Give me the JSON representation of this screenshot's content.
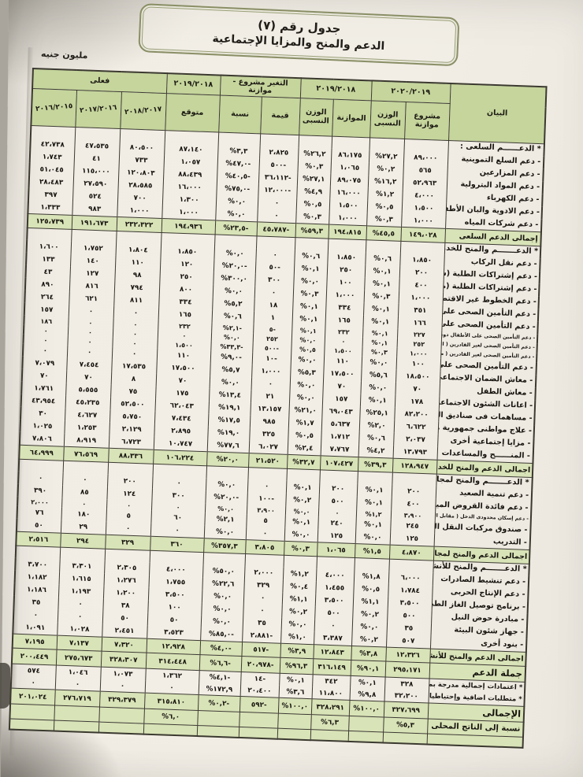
{
  "page": {
    "title_line1": "جدول رقم (٧)",
    "title_line2": "الدعم والمنح والمزايا الإجتماعية",
    "unit_label": "مليون جنيه"
  },
  "table": {
    "groups": {
      "fy_draft": "٢٠٢٠/٢٠١٩",
      "fy_budget": "٢٠١٩/٢٠١٨",
      "change": "التغير مشروع - موازنة",
      "fy_expected": "٢٠١٩/٢٠١٨",
      "actual": "فعلى"
    },
    "headers": {
      "item": "البيان",
      "draft_budget": "مشروع موازنة",
      "relative_weight": "الوزن النسبى",
      "budget": "الموازنة",
      "relative_weight2": "الوزن النسبى",
      "change_value": "قيمة",
      "change_pct": "نسبة",
      "expected": "متوقع",
      "fy1718": "٢٠١٨/٢٠١٧",
      "fy1617": "٢٠١٧/٢٠١٦",
      "fy1516": "٢٠١٦/٢٠١٥"
    },
    "rows": [
      {
        "type": "section",
        "label": "* الدعــــــم السلعى :",
        "cells": [
          "",
          "",
          "",
          "",
          "",
          "",
          "",
          "",
          "",
          ""
        ]
      },
      {
        "type": "item",
        "label": "- دعم السلع التموينية",
        "cells": [
          "٨٩،٠٠٠",
          "%٢٧,٢",
          "٨٦،١٧٥",
          "%٢٦,٢",
          "٢،٨٢٥",
          "%٣,٣",
          "٨٧،١٤٠",
          "٨٠،٥٠٠",
          "٤٧،٥٣٥",
          "٤٢،٧٣٨"
        ]
      },
      {
        "type": "item",
        "label": "- دعم المزارعين",
        "cells": [
          "٥٦٥",
          "%٠,٢",
          "١،٠٦٥",
          "%٠,٣",
          "٥٠٠-",
          "%٤٧,٠-",
          "١،٠٥٧",
          "٧٣٣",
          "٤١",
          "١،٧٤٣"
        ]
      },
      {
        "type": "item",
        "label": "- دعم المواد البترولية",
        "cells": [
          "٥٢،٩٦٣",
          "%١٦,٢",
          "٨٩،٠٧٥",
          "%٢٧,١",
          "٣٦،١١٢-",
          "%٤٠,٥-",
          "٨٨،٤٣٩",
          "١٢٠،٨٠٣",
          "١١٥،٠٠٠",
          "٥١،٠٤٥"
        ]
      },
      {
        "type": "item",
        "label": "- دعم الكهرباء",
        "cells": [
          "٤،٠٠٠",
          "%١,٢",
          "١٦،٠٠٠",
          "%٤,٩",
          "١٢،٠٠٠-",
          "%٧٥,٠-",
          "١٦،٠٠٠",
          "٢٨،٥٨٥",
          "٢٧،٥٩٠",
          "٢٨،٤٨٣"
        ]
      },
      {
        "type": "item",
        "label": "- دعم الادوية والبان الأطفال",
        "cells": [
          "١،٥٠٠",
          "%٠,٥",
          "١،٥٠٠",
          "%٠,٥",
          "٠",
          "%٠,٠",
          "١،٣٠٠",
          "٧٠٠",
          "٥٢٤",
          "٣٩٧"
        ]
      },
      {
        "type": "item",
        "label": "- دعم شركات المياه",
        "cells": [
          "١،٠٠٠",
          "%٠,٣",
          "١،٠٠٠",
          "%٠,٣",
          "٠",
          "%٠,٠",
          "١،٠٠٠",
          "١،٠٠٠",
          "٩٨٣",
          "١،٣٣٣"
        ]
      },
      {
        "type": "total",
        "label": "إجمالى الدعم السلعى",
        "cells": [
          "١٤٩،٠٢٨",
          "%٤٥,٥",
          "١٩٤،٨١٥",
          "%٥٩,٣",
          "٤٥،٧٨٧-",
          "%٢٣,٥-",
          "١٩٤،٩٣٦",
          "٢٣٢،٣٢٢",
          "١٩١،٦٧٣",
          "١٢٥،٧٣٩"
        ]
      },
      {
        "type": "section",
        "label": "* الدعـــــــم والمنح للخدمات الإجتماعية :",
        "cells": [
          "",
          "",
          "",
          "",
          "",
          "",
          "",
          "",
          "",
          ""
        ]
      },
      {
        "type": "item",
        "label": "- دعم نقل الركاب",
        "cells": [
          "١،٨٥٠",
          "%٠,٦",
          "١،٨٥٠",
          "%٠,٦",
          "٠",
          "%٠,٠",
          "١،٨٥٠",
          "١،٨٠٤",
          "١،٧٥٢",
          "١،٦٠٠"
        ]
      },
      {
        "type": "item",
        "label": "- دعم إشتراكات الطلبة (سكك حديد)",
        "cells": [
          "٢٠٠",
          "%٠,١",
          "٢٥٠",
          "%٠,١",
          "٥٠-",
          "%٢٠,٠-",
          "١٢٠",
          "١١٠",
          "١٤٠",
          "١٣٣"
        ]
      },
      {
        "type": "item",
        "label": "- دعم إشتراكات الطلبة (مترو الأنفاق)",
        "cells": [
          "٤٠٠",
          "%٠,١",
          "١٠٠",
          "%٠,٠",
          "٣٠٠",
          "%٣٠٠,٠",
          "٢٥٠",
          "٩٨",
          "١٢٧",
          "٤٣"
        ]
      },
      {
        "type": "item",
        "label": "- دعم الخطوط غير الاقتصادية (سكك حديد)",
        "cells": [
          "١،٠٠٠",
          "%٠,٣",
          "١،٠٠٠",
          "%٠,٣",
          "٠",
          "%٠,٠",
          "٨٠٠",
          "٧٩٤",
          "٨١٦",
          "٨٩٠"
        ]
      },
      {
        "type": "item",
        "label": "- دعم التأمين الصحى على الطلاب",
        "cells": [
          "٣٥١",
          "%٠,١",
          "٣٣٤",
          "%٠,١",
          "١٨",
          "%٥,٢",
          "٣٣٤",
          "٨١١",
          "٦٢١",
          "٢٦٤"
        ]
      },
      {
        "type": "item",
        "label": "- دعم التأمين الصحى على المرأة المعيلة",
        "cells": [
          "١٦٦",
          "%٠,١",
          "١٦٥",
          "%٠,١",
          "١",
          "%٠,٦",
          "١٦٥",
          "٠",
          "٠",
          "١٥٧"
        ]
      },
      {
        "type": "small",
        "label": "- دعم التأمين الصحى على الأطفال دون السن المدرسى",
        "cells": [
          "٢٢٧",
          "%٠,١",
          "٢٣٢",
          "%٠,١",
          "٥-",
          "%٢,١-",
          "٢٣٢",
          "٠",
          "٠",
          "١٨٦"
        ]
      },
      {
        "type": "small",
        "label": "- دعم التأمين الصحى لغير القادرين ( التأمين الصحى الشامل )",
        "cells": [
          "٢٥٢",
          "%٠,١",
          "٠",
          "%٠,٠",
          "٢٥٢",
          "%٠,٠",
          "٠",
          "٠",
          "٠",
          "٠"
        ]
      },
      {
        "type": "small",
        "label": "- دعم التأمين الصحى لغير القادرين ( من نصيب معاش الضمان الإجتماعى )",
        "cells": [
          "١،٠٠٠",
          "%٠,٣",
          "١،٥٠٠",
          "%٠,٥",
          "٥٠٠-",
          "%٣٣,٣-",
          "١،٥٠٠",
          "٠",
          "٠",
          "٠"
        ]
      },
      {
        "type": "item",
        "label": "- دعم التأمين الصحى على الفلاحين",
        "cells": [
          "١٠٠",
          "%٠,٠",
          "١١٠",
          "%٠,٠",
          "١٠-",
          "%٩,٠-",
          "١١٠",
          "٠",
          "٠",
          "٠"
        ]
      },
      {
        "type": "item",
        "label": "- معاش الضمان الاجتماعى",
        "cells": [
          "١٨،٥٠٠",
          "%٥,٦",
          "١٧،٥٠٠",
          "%٥,٣",
          "١،٠٠٠",
          "%٥,٧",
          "١٧،٥٠٠",
          "١٧،٥٣٥",
          "٧،٤٥٤",
          "٧،٠٧٩"
        ]
      },
      {
        "type": "item",
        "label": "- معاش الطفل",
        "cells": [
          "٧٠",
          "%٠,٠",
          "٧٠",
          "%٠,٠",
          "٠",
          "%٠,٠",
          "٧٠",
          "٨",
          "٧٠",
          "٧٠"
        ]
      },
      {
        "type": "item",
        "label": "- اعانات الشئون الاجتماعية",
        "cells": [
          "١٧٨",
          "%٠,١",
          "١٥٧",
          "%٠,٠",
          "٢١",
          "%١٣,٤",
          "١٧٥",
          "٧٥",
          "٥،٥٥٥",
          "١،٧٦١"
        ]
      },
      {
        "type": "item",
        "label": "- مساهمات فى صناديق المعاشات",
        "cells": [
          "٨٢،٢٠٠",
          "%٢٥,١",
          "٦٩،٠٤٣",
          "%٢١,٠",
          "١٣،١٥٧",
          "%١٩,١",
          "٦٢،٠٤٣",
          "٥٢،٥٠٠",
          "٤٥،٢٣٥",
          "٤٣،٩٥٤"
        ]
      },
      {
        "type": "item",
        "label": "- علاج مواطنى جمهورية مصر العربية",
        "cells": [
          "٦،٦٢٢",
          "%٢,٠",
          "٥،٦٣٧",
          "%١,٧",
          "٩٨٥",
          "%١٧,٥",
          "٧،٤٣٤",
          "٥،٧٥٠",
          "٤،٦٢٧",
          "٣٠"
        ]
      },
      {
        "type": "item",
        "label": "- مزايا إجتماعية أخرى",
        "cells": [
          "٢،٠٣٧",
          "%٠,٦",
          "١،٧١٢",
          "%٠,٥",
          "٣٢٥",
          "%١٩,٠",
          "٢،٨٩٥",
          "٢،١٢٩",
          "١،٢٥٣",
          "١،٠٢٥"
        ]
      },
      {
        "type": "item",
        "label": "- المنــــــح والمساعدات",
        "cells": [
          "١٣،٧٩٣",
          "%٤,٢",
          "٧،٧٦٧",
          "%٢,٤",
          "٦،٠٢٧",
          "%٧٧,٦",
          "١٠،٧٤٧",
          "٦،٧٢٣",
          "٨،٩١٩",
          "٧،٨٠٦"
        ]
      },
      {
        "type": "total",
        "label": "اجمالى الدعم والمنح للخدمات الاجتماعية",
        "cells": [
          "١٢٨،٩٤٧",
          "%٣٩,٣",
          "١٠٧،٤٢٧",
          "%٣٢,٧",
          "٢١،٥٢٠",
          "%٢٠,٠",
          "١٠٦،٢٢٤",
          "٨٨،٣٣٦",
          "٧٦،٥٦٩",
          "٦٤،٩٩٩"
        ]
      },
      {
        "type": "section",
        "label": "* الدعـــــــم والمنح لمجالات التنمية :",
        "cells": [
          "",
          "",
          "",
          "",
          "",
          "",
          "",
          "",
          "",
          ""
        ]
      },
      {
        "type": "item",
        "label": "- دعم تنمية الصعيد",
        "cells": [
          "٢٠٠",
          "%٠,١",
          "٢٠٠",
          "%٠,١",
          "٠",
          "%٠,٠",
          "٠",
          "٢٠٠",
          "٠",
          "٠"
        ]
      },
      {
        "type": "item",
        "label": "- دعم فائدة القروض الميسرة",
        "cells": [
          "٤٠٠",
          "%٠,١",
          "٥٠٠",
          "%٠,٢",
          "١٠٠-",
          "%٢٠,٠-",
          "٣٠٠",
          "١٢٤",
          "٨٥",
          "٣٩٠"
        ]
      },
      {
        "type": "small",
        "label": "- دعم إسكان محدودى الدخل ( مقابل المحصل وفقا لقانون الإسكان الإجتماعى )",
        "cells": [
          "٣،٩٠٠",
          "%١,٢",
          "٠",
          "%٠,٠",
          "٣،٩٠٠",
          "%٠,٠",
          "٠",
          "٠",
          "٠",
          "٢،٠٠٠"
        ]
      },
      {
        "type": "item",
        "label": "- صندوق مركبات النقل السريع",
        "cells": [
          "٢٤٥",
          "%٠,١",
          "٢٤٠",
          "%٠,١",
          "٥",
          "%٢,١",
          "٦٠",
          "٥",
          "١٨٠",
          "٧٦"
        ]
      },
      {
        "type": "item",
        "label": "- التدريب",
        "cells": [
          "١٢٥",
          "%٠,٠",
          "١٢٥",
          "%٠,٠",
          "٠",
          "%٠,٠",
          "٠",
          "٠",
          "٢٩",
          "٥٠"
        ]
      },
      {
        "type": "total",
        "label": "اجمالى الدعم والمنح لمجالات التنمية",
        "cells": [
          "٤،٨٧٠",
          "%١,٥",
          "١،٠٦٥",
          "%٠,٣",
          "٣،٨٠٥",
          "%٣٥٧,٣",
          "٣٦٠",
          "٣٢٩",
          "٢٩٤",
          "٢،٥١٦"
        ]
      },
      {
        "type": "section",
        "label": "* الدعـــــــم والمنح للأنشطة الإقتصادية :",
        "cells": [
          "",
          "",
          "",
          "",
          "",
          "",
          "",
          "",
          "",
          ""
        ]
      },
      {
        "type": "item",
        "label": "- دعم تنشيط الصادرات",
        "cells": [
          "٦،٠٠٠",
          "%١,٨",
          "٤،٠٠٠",
          "%١,٢",
          "٢،٠٠٠",
          "%٥٠,٠",
          "٤،٠٠٠",
          "٢،٣٠٥",
          "٣،٣٠١",
          "٣،٧٠٠"
        ]
      },
      {
        "type": "item",
        "label": "- دعم الإنتاج الحربى",
        "cells": [
          "١،٧٨٤",
          "%٠,٥",
          "١،٤٥٥",
          "%٠,٤",
          "٣٢٩",
          "%٢٢,٦",
          "١،٧٥٥",
          "١،٢٧٦",
          "١،٦١٥",
          "١،١٨٢"
        ]
      },
      {
        "type": "item",
        "label": "- برنامج توصيل الغاز الطبيعى للمنازل",
        "cells": [
          "٣،٥٠٠",
          "%١,١",
          "٣،٥٠٠",
          "%١,١",
          "٠",
          "%٠,٠",
          "٣،٥٠٠",
          "١،٢٠٠",
          "١،١٩٣",
          "١،١٨٦"
        ]
      },
      {
        "type": "item",
        "label": "- مبادرة حوض النيل",
        "cells": [
          "٥٠٠",
          "%٠,٢",
          "٥٠٠",
          "%٠,٢",
          "٠",
          "%٠,٠",
          "١٠٠",
          "٣٨",
          "٠",
          "٣٥"
        ]
      },
      {
        "type": "item",
        "label": "- جهاز شئون البيئة",
        "cells": [
          "٣٥",
          "%٠,٠",
          "٠",
          "%٠,٠",
          "٣٥",
          "%٠,٠",
          "٥٠",
          "٥٠",
          "٠",
          "٠"
        ]
      },
      {
        "type": "item",
        "label": "- بنود أخرى",
        "cells": [
          "٥٠٧",
          "%٠,٢",
          "٣،٣٨٧",
          "%١,٠",
          "٢،٨٨١-",
          "%٨٥,٠-",
          "٣،٥٢٣",
          "٢،٤٥١",
          "١،٠٢٨",
          "١،٠٩١"
        ]
      },
      {
        "type": "total",
        "label": "اجمالى الدعم والمنح للأنشطة الإقتصادية",
        "cells": [
          "١٢،٣٢٦",
          "%٣,٨",
          "١٢،٨٤٣",
          "%٣,٩",
          "٥١٧-",
          "%٤,٠-",
          "١٢،٩٢٨",
          "٧،٣٢٠",
          "٧،١٣٧",
          "٧،١٩٥"
        ]
      },
      {
        "type": "grand",
        "label": "جملة الدعم",
        "cells": [
          "٢٩٥،١٧١",
          "%٩٠,١",
          "٣١٦،١٤٩",
          "%٩٦,٣",
          "٢٠،٩٧٨-",
          "%٦,٦-",
          "٣١٤،٤٤٨",
          "٣٢٨،٣٠٧",
          "٢٧٥،٦٧٣",
          "٢٠٠،٤٤٩"
        ]
      },
      {
        "type": "note",
        "label": "* اعتمادات إجمالية مدرجة بموازنات الجهات",
        "cells": [
          "٣٢٨",
          "%٠,١",
          "٣٤٢",
          "%٠,١",
          "١٤-",
          "%٤,١-",
          "١،٣٦٢",
          "١،٠٧٣",
          "١،٠٤٦",
          "٥٧٤"
        ]
      },
      {
        "type": "note",
        "label": "* متطلبات اضافية وإحتياطيات",
        "cells": [
          "٣٢،٢٠٠",
          "%٩,٨",
          "١١،٨٠٠",
          "%٣,٦",
          "٢٠،٤٠٠",
          "%١٧٢,٩",
          "٠",
          "٠",
          "٠",
          "٠"
        ]
      },
      {
        "type": "grand",
        "label": "الإجمالى",
        "cells": [
          "٣٢٧،٦٩٩",
          "%١٠٠,٠",
          "٣٢٨،٢٩١",
          "%١٠٠,٠",
          "٥٩٢-",
          "%٠,٢-",
          "٣١٥،٨١٠",
          "٣٢٩،٣٧٩",
          "٢٧٦،٧١٩",
          "٢٠١،٠٢٤"
        ]
      },
      {
        "type": "gdp",
        "label": "نسبة إلى الناتج المحلى",
        "cells": [
          "%٥,٣",
          "",
          "%٦,٣",
          "",
          "",
          "",
          "%٦,٠",
          "",
          "",
          ""
        ]
      },
      {
        "type": "footer",
        "label": "",
        "cells": [
          "",
          "",
          "",
          "",
          "",
          "",
          "",
          "",
          "",
          ""
        ]
      }
    ]
  }
}
